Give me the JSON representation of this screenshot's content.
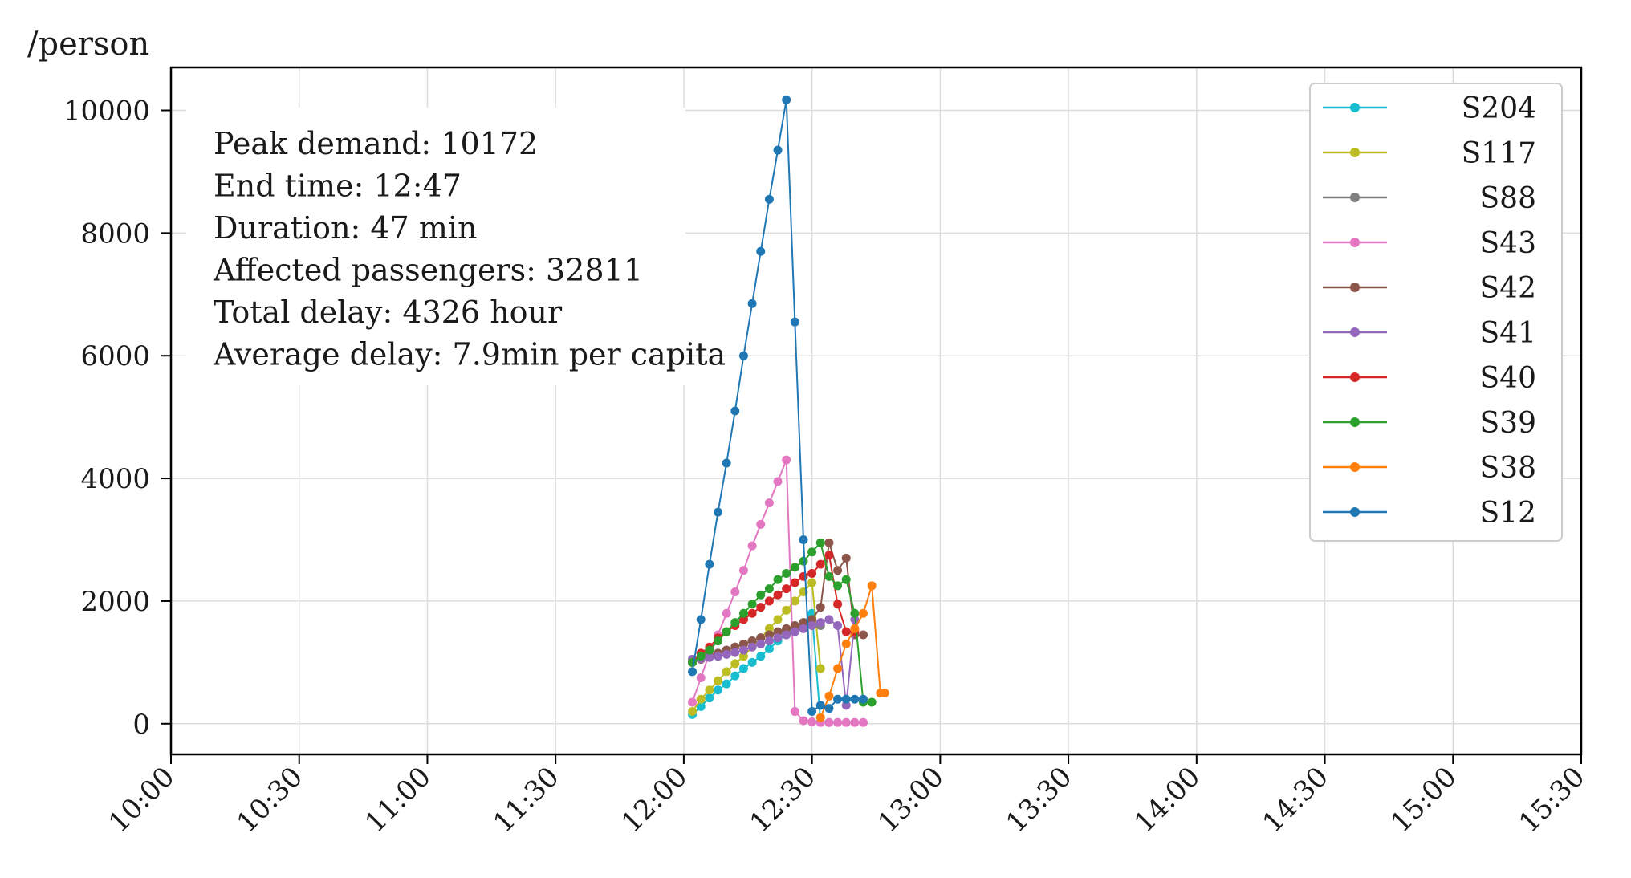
{
  "chart_data": {
    "type": "line",
    "ylabel": "/person",
    "xlabel": "",
    "grid": true,
    "legend_placement": "top-right",
    "x_ticks": [
      "10:00",
      "10:30",
      "11:00",
      "11:30",
      "12:00",
      "12:30",
      "13:00",
      "13:30",
      "14:00",
      "14:30",
      "15:00",
      "15:30"
    ],
    "y_ticks": [
      "0",
      "2000",
      "4000",
      "6000",
      "8000",
      "10000"
    ],
    "xlim": [
      "10:00",
      "15:30"
    ],
    "ylim": [
      -500,
      10700
    ],
    "annotation": [
      "Peak demand: 10172",
      "End time: 12:47",
      "Duration: 47 min",
      "Affected passengers: 32811",
      "Total delay: 4326 hour",
      "Average delay: 7.9min per capita"
    ],
    "series": [
      {
        "name": "S204",
        "color": "#17becf",
        "x": [
          "12:02",
          "12:04",
          "12:06",
          "12:08",
          "12:10",
          "12:12",
          "12:14",
          "12:16",
          "12:18",
          "12:20",
          "12:22",
          "12:24",
          "12:26",
          "12:28",
          "12:30",
          "12:32",
          "12:34"
        ],
        "y": [
          150,
          280,
          420,
          550,
          650,
          780,
          900,
          1000,
          1100,
          1220,
          1350,
          1450,
          1550,
          1650,
          1800,
          30,
          20
        ]
      },
      {
        "name": "S117",
        "color": "#bcbd22",
        "x": [
          "12:02",
          "12:04",
          "12:06",
          "12:08",
          "12:10",
          "12:12",
          "12:14",
          "12:16",
          "12:18",
          "12:20",
          "12:22",
          "12:24",
          "12:26",
          "12:28",
          "12:30",
          "12:32"
        ],
        "y": [
          200,
          400,
          550,
          700,
          850,
          980,
          1100,
          1250,
          1400,
          1550,
          1700,
          1850,
          2000,
          2150,
          2300,
          900
        ]
      },
      {
        "name": "S88",
        "color": "#7f7f7f",
        "x": [
          "12:02",
          "12:04",
          "12:06",
          "12:08",
          "12:10",
          "12:12",
          "12:14",
          "12:16",
          "12:18",
          "12:20",
          "12:22",
          "12:24",
          "12:26",
          "12:28",
          "12:30",
          "12:32"
        ],
        "y": [
          1050,
          1080,
          1120,
          1150,
          1200,
          1250,
          1300,
          1350,
          1400,
          1450,
          1480,
          1520,
          1550,
          1580,
          1620,
          1600
        ]
      },
      {
        "name": "S43",
        "color": "#e377c2",
        "x": [
          "12:02",
          "12:04",
          "12:06",
          "12:08",
          "12:10",
          "12:12",
          "12:14",
          "12:16",
          "12:18",
          "12:20",
          "12:22",
          "12:24",
          "12:26",
          "12:28",
          "12:30",
          "12:32",
          "12:34",
          "12:36",
          "12:38",
          "12:40",
          "12:42"
        ],
        "y": [
          350,
          750,
          1150,
          1450,
          1800,
          2150,
          2500,
          2900,
          3250,
          3600,
          3950,
          4300,
          200,
          50,
          30,
          20,
          20,
          20,
          20,
          20,
          20
        ]
      },
      {
        "name": "S42",
        "color": "#8c564b",
        "x": [
          "12:02",
          "12:04",
          "12:06",
          "12:08",
          "12:10",
          "12:12",
          "12:14",
          "12:16",
          "12:18",
          "12:20",
          "12:22",
          "12:24",
          "12:26",
          "12:28",
          "12:30",
          "12:32",
          "12:34",
          "12:36",
          "12:38",
          "12:40",
          "12:42"
        ],
        "y": [
          1000,
          1050,
          1100,
          1150,
          1200,
          1250,
          1300,
          1350,
          1400,
          1450,
          1500,
          1550,
          1600,
          1650,
          1700,
          1900,
          2950,
          2500,
          2700,
          1450,
          1450
        ]
      },
      {
        "name": "S41",
        "color": "#9467bd",
        "x": [
          "12:02",
          "12:04",
          "12:06",
          "12:08",
          "12:10",
          "12:12",
          "12:14",
          "12:16",
          "12:18",
          "12:20",
          "12:22",
          "12:24",
          "12:26",
          "12:28",
          "12:30",
          "12:32",
          "12:34",
          "12:36",
          "12:38",
          "12:40"
        ],
        "y": [
          1050,
          1060,
          1080,
          1100,
          1130,
          1160,
          1200,
          1250,
          1300,
          1350,
          1400,
          1450,
          1500,
          1550,
          1600,
          1650,
          1700,
          1600,
          300,
          1700
        ]
      },
      {
        "name": "S40",
        "color": "#d62728",
        "x": [
          "12:02",
          "12:04",
          "12:06",
          "12:08",
          "12:10",
          "12:12",
          "12:14",
          "12:16",
          "12:18",
          "12:20",
          "12:22",
          "12:24",
          "12:26",
          "12:28",
          "12:30",
          "12:32",
          "12:34",
          "12:36",
          "12:38",
          "12:40"
        ],
        "y": [
          1000,
          1150,
          1250,
          1400,
          1500,
          1600,
          1700,
          1800,
          1900,
          2000,
          2100,
          2200,
          2300,
          2400,
          2450,
          2600,
          2750,
          1950,
          1500,
          1500
        ]
      },
      {
        "name": "S39",
        "color": "#2ca02c",
        "x": [
          "12:02",
          "12:04",
          "12:06",
          "12:08",
          "12:10",
          "12:12",
          "12:14",
          "12:16",
          "12:18",
          "12:20",
          "12:22",
          "12:24",
          "12:26",
          "12:28",
          "12:30",
          "12:32",
          "12:34",
          "12:36",
          "12:38",
          "12:40",
          "12:42",
          "12:44"
        ],
        "y": [
          1000,
          1100,
          1200,
          1350,
          1500,
          1650,
          1800,
          1950,
          2100,
          2200,
          2350,
          2450,
          2550,
          2650,
          2800,
          2950,
          2400,
          2250,
          2350,
          1800,
          350,
          350
        ]
      },
      {
        "name": "S38",
        "color": "#ff7f0e",
        "x": [
          "12:32",
          "12:34",
          "12:36",
          "12:38",
          "12:40",
          "12:42",
          "12:44",
          "12:46",
          "12:47"
        ],
        "y": [
          100,
          450,
          900,
          1300,
          1550,
          1800,
          2250,
          500,
          500
        ]
      },
      {
        "name": "S12",
        "color": "#1f77b4",
        "x": [
          "12:02",
          "12:04",
          "12:06",
          "12:08",
          "12:10",
          "12:12",
          "12:14",
          "12:16",
          "12:18",
          "12:20",
          "12:22",
          "12:24",
          "12:26",
          "12:28",
          "12:30",
          "12:32",
          "12:34",
          "12:36",
          "12:38",
          "12:40",
          "12:42"
        ],
        "y": [
          850,
          1700,
          2600,
          3450,
          4250,
          5100,
          6000,
          6850,
          7700,
          8550,
          9350,
          10172,
          6550,
          3000,
          200,
          300,
          250,
          400,
          400,
          400,
          400
        ]
      }
    ]
  }
}
